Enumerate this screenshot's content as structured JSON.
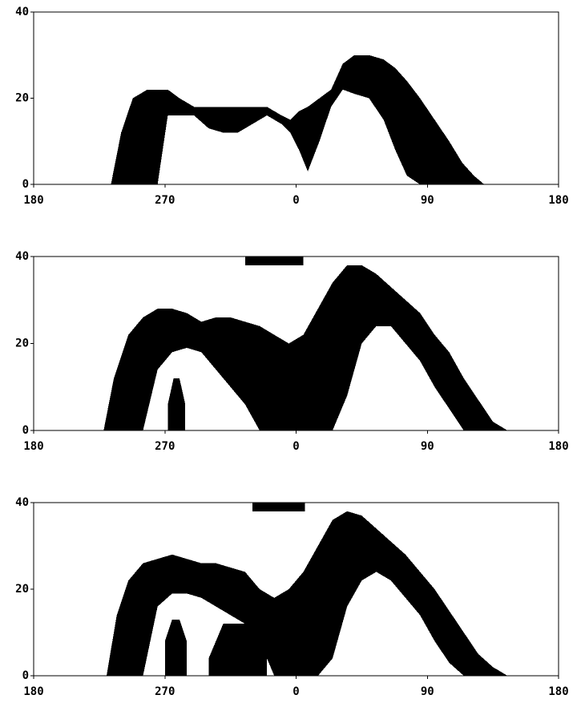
{
  "chart_data": [
    {
      "type": "band",
      "xlim": [
        180,
        540
      ],
      "ylim": [
        0,
        40
      ],
      "xticks": [
        {
          "value": 180,
          "label": "180"
        },
        {
          "value": 270,
          "label": "270"
        },
        {
          "value": 360,
          "label": "0"
        },
        {
          "value": 450,
          "label": "90"
        },
        {
          "value": 540,
          "label": "180"
        }
      ],
      "yticks": [
        0,
        20,
        40
      ],
      "color": "#000000",
      "bands": [
        {
          "x": [
            233,
            240,
            248,
            258,
            265,
            272,
            280,
            290,
            300,
            310,
            320,
            330,
            340,
            350,
            356,
            362,
            368,
            376,
            384,
            392,
            400,
            410,
            420,
            428,
            436,
            445,
            455,
            465,
            474,
            482,
            489
          ],
          "upper": [
            0,
            12,
            20,
            22,
            22,
            22,
            20,
            18,
            18,
            18,
            18,
            18,
            18,
            16,
            15,
            17,
            18,
            20,
            22,
            28,
            30,
            30,
            29,
            27,
            24,
            20,
            15,
            10,
            5,
            2,
            0
          ],
          "lower": [
            0,
            0,
            0,
            0,
            0,
            16,
            16,
            16,
            13,
            12,
            12,
            14,
            16,
            14,
            12,
            8,
            3,
            10,
            18,
            22,
            21,
            20,
            15,
            8,
            2,
            0,
            0,
            0,
            0,
            0,
            0
          ]
        }
      ]
    },
    {
      "type": "band",
      "xlim": [
        180,
        540
      ],
      "ylim": [
        0,
        40
      ],
      "xticks": [
        {
          "value": 180,
          "label": "180"
        },
        {
          "value": 270,
          "label": "270"
        },
        {
          "value": 360,
          "label": "0"
        },
        {
          "value": 450,
          "label": "90"
        },
        {
          "value": 540,
          "label": "180"
        }
      ],
      "yticks": [
        0,
        20,
        40
      ],
      "color": "#000000",
      "bands": [
        {
          "x": [
            228,
            235,
            245,
            255,
            265,
            275,
            285,
            295,
            305,
            315,
            325,
            335,
            345,
            355,
            365,
            375,
            385,
            395,
            405,
            415,
            425,
            435,
            445,
            455,
            465,
            475,
            485,
            495,
            505
          ],
          "upper": [
            0,
            12,
            22,
            26,
            28,
            28,
            27,
            25,
            26,
            26,
            25,
            24,
            22,
            20,
            22,
            28,
            34,
            38,
            38,
            36,
            33,
            30,
            27,
            22,
            18,
            12,
            7,
            2,
            0
          ],
          "lower": [
            0,
            0,
            0,
            0,
            14,
            18,
            19,
            18,
            14,
            10,
            6,
            0,
            0,
            0,
            0,
            0,
            0,
            8,
            20,
            24,
            24,
            20,
            16,
            10,
            5,
            0,
            0,
            0,
            0
          ]
        },
        {
          "x": [
            272,
            276,
            280,
            284
          ],
          "upper": [
            6,
            12,
            12,
            6
          ],
          "lower": [
            0,
            0,
            0,
            0
          ]
        },
        {
          "x": [
            325,
            335,
            345,
            355,
            365
          ],
          "upper": [
            40,
            40,
            40,
            40,
            40
          ],
          "lower": [
            38,
            38,
            38,
            38,
            38
          ]
        }
      ]
    },
    {
      "type": "band",
      "xlim": [
        180,
        540
      ],
      "ylim": [
        0,
        40
      ],
      "xticks": [
        {
          "value": 180,
          "label": "180"
        },
        {
          "value": 270,
          "label": "270"
        },
        {
          "value": 360,
          "label": "0"
        },
        {
          "value": 450,
          "label": "90"
        },
        {
          "value": 540,
          "label": "180"
        }
      ],
      "yticks": [
        0,
        20,
        40
      ],
      "color": "#000000",
      "bands": [
        {
          "x": [
            230,
            237,
            245,
            255,
            265,
            275,
            285,
            295,
            305,
            315,
            325,
            335,
            345,
            355,
            365,
            375,
            385,
            395,
            405,
            415,
            425,
            435,
            445,
            455,
            465,
            475,
            485,
            495,
            505
          ],
          "upper": [
            0,
            14,
            22,
            26,
            27,
            28,
            27,
            26,
            26,
            25,
            24,
            20,
            18,
            20,
            24,
            30,
            36,
            38,
            37,
            34,
            31,
            28,
            24,
            20,
            15,
            10,
            5,
            2,
            0
          ],
          "lower": [
            0,
            0,
            0,
            0,
            16,
            19,
            19,
            18,
            16,
            14,
            12,
            8,
            0,
            0,
            0,
            0,
            4,
            16,
            22,
            24,
            22,
            18,
            14,
            8,
            3,
            0,
            0,
            0,
            0
          ]
        },
        {
          "x": [
            270,
            275,
            280,
            285
          ],
          "upper": [
            8,
            13,
            13,
            8
          ],
          "lower": [
            0,
            0,
            0,
            0
          ]
        },
        {
          "x": [
            300,
            310,
            320,
            330,
            340
          ],
          "upper": [
            4,
            12,
            12,
            12,
            6
          ],
          "lower": [
            0,
            0,
            0,
            0,
            0
          ]
        },
        {
          "x": [
            330,
            340,
            350,
            360,
            366
          ],
          "upper": [
            40,
            40,
            40,
            40,
            40
          ],
          "lower": [
            38,
            38,
            38,
            38,
            38
          ]
        }
      ]
    }
  ]
}
